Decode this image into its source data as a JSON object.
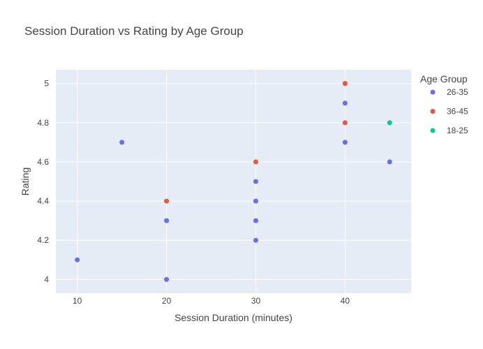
{
  "chart_data": {
    "type": "scatter",
    "title": "Session Duration vs Rating by Age Group",
    "xlabel": "Session Duration (minutes)",
    "ylabel": "Rating",
    "xlim": [
      7.6,
      47.4
    ],
    "ylim": [
      3.93,
      5.07
    ],
    "xticks": [
      10,
      20,
      30,
      40
    ],
    "yticks": [
      4,
      4.2,
      4.4,
      4.6,
      4.8,
      5
    ],
    "ytick_labels": [
      "4",
      "4.2",
      "4.4",
      "4.6",
      "4.8",
      "5"
    ],
    "grid": true,
    "legend_title": "Age Group",
    "legend_position": "right",
    "series": [
      {
        "name": "26-35",
        "color": "#636efa",
        "points": [
          {
            "x": 10,
            "y": 4.1
          },
          {
            "x": 15,
            "y": 4.7
          },
          {
            "x": 20,
            "y": 4.3
          },
          {
            "x": 20,
            "y": 4.0
          },
          {
            "x": 30,
            "y": 4.5
          },
          {
            "x": 30,
            "y": 4.4
          },
          {
            "x": 30,
            "y": 4.3
          },
          {
            "x": 30,
            "y": 4.2
          },
          {
            "x": 40,
            "y": 4.9
          },
          {
            "x": 40,
            "y": 4.7
          },
          {
            "x": 45,
            "y": 4.6
          }
        ]
      },
      {
        "name": "36-45",
        "color": "#ef553b",
        "points": [
          {
            "x": 20,
            "y": 4.4
          },
          {
            "x": 30,
            "y": 4.6
          },
          {
            "x": 40,
            "y": 5.0
          },
          {
            "x": 40,
            "y": 4.8
          }
        ]
      },
      {
        "name": "18-25",
        "color": "#00cc96",
        "points": [
          {
            "x": 45,
            "y": 4.8
          }
        ]
      }
    ]
  }
}
